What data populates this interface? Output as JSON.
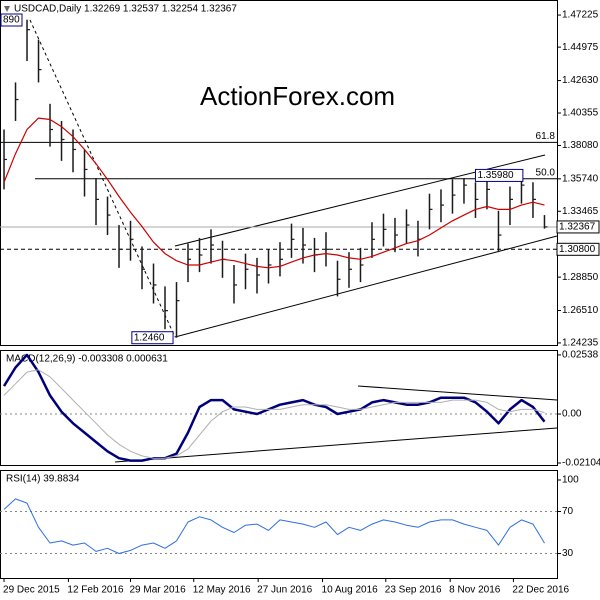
{
  "chart_data": [
    {
      "type": "ohlc",
      "title": "USDCAD,Daily 1.32269 1.32537 1.32254 1.32367",
      "watermark": "ActionForex.com",
      "cut_label": "890",
      "x": [
        0,
        1,
        2,
        3,
        4,
        5,
        6,
        7,
        8,
        9,
        10,
        11,
        12,
        13,
        14,
        15,
        16,
        17,
        18,
        19,
        20,
        21,
        22,
        23,
        24,
        25,
        26,
        27,
        28,
        29,
        30,
        31,
        32,
        33,
        34,
        35,
        36,
        37,
        38,
        39,
        40,
        41,
        42,
        43,
        44,
        45,
        46,
        47
      ],
      "xlim": [
        -0.35,
        48.09
      ],
      "xticks": [
        {
          "value": 0,
          "label": "29 Dec 2015"
        },
        {
          "value": 5.6,
          "label": "12 Feb 2016"
        },
        {
          "value": 11,
          "label": "29 Mar 2016"
        },
        {
          "value": 16.5,
          "label": "12 May 2016"
        },
        {
          "value": 22.1,
          "label": "27 Jun 2016"
        },
        {
          "value": 27.7,
          "label": "10 Aug 2016"
        },
        {
          "value": 33.2,
          "label": "23 Sep 2016"
        },
        {
          "value": 38.8,
          "label": "8 Nov 2016"
        },
        {
          "value": 44.3,
          "label": "22 Dec 2016"
        }
      ],
      "high": [
        1.392,
        1.425,
        1.469,
        1.455,
        1.41,
        1.398,
        1.392,
        1.378,
        1.358,
        1.345,
        1.325,
        1.328,
        1.31,
        1.298,
        1.282,
        1.285,
        1.312,
        1.316,
        1.322,
        1.314,
        1.297,
        1.305,
        1.302,
        1.308,
        1.313,
        1.326,
        1.323,
        1.316,
        1.32,
        1.3,
        1.306,
        1.309,
        1.327,
        1.333,
        1.33,
        1.336,
        1.328,
        1.347,
        1.35,
        1.357,
        1.358,
        1.355,
        1.357,
        1.335,
        1.352,
        1.3598,
        1.355,
        1.332
      ],
      "low": [
        1.35,
        1.398,
        1.44,
        1.425,
        1.38,
        1.37,
        1.362,
        1.345,
        1.325,
        1.318,
        1.295,
        1.3,
        1.28,
        1.27,
        1.252,
        1.246,
        1.285,
        1.292,
        1.298,
        1.288,
        1.27,
        1.28,
        1.277,
        1.284,
        1.289,
        1.302,
        1.298,
        1.292,
        1.296,
        1.275,
        1.281,
        1.285,
        1.302,
        1.31,
        1.306,
        1.312,
        1.303,
        1.322,
        1.327,
        1.333,
        1.34,
        1.33,
        1.336,
        1.306,
        1.325,
        1.34,
        1.33,
        1.3225
      ],
      "close": [
        1.371,
        1.413,
        1.462,
        1.434,
        1.392,
        1.385,
        1.378,
        1.364,
        1.343,
        1.332,
        1.308,
        1.315,
        1.294,
        1.283,
        1.265,
        1.272,
        1.301,
        1.304,
        1.311,
        1.301,
        1.283,
        1.294,
        1.29,
        1.297,
        1.301,
        1.315,
        1.311,
        1.304,
        1.308,
        1.287,
        1.294,
        1.297,
        1.315,
        1.322,
        1.318,
        1.325,
        1.315,
        1.336,
        1.339,
        1.346,
        1.353,
        1.343,
        1.35,
        1.318,
        1.343,
        1.353,
        1.343,
        1.3237
      ],
      "color": "#1a1a1a",
      "series": [
        {
          "color": "#cc0000",
          "values": [
            1.355,
            1.375,
            1.392,
            1.4,
            1.399,
            1.394,
            1.387,
            1.378,
            1.368,
            1.357,
            1.345,
            1.334,
            1.324,
            1.313,
            1.305,
            1.3,
            1.297,
            1.297,
            1.299,
            1.301,
            1.3,
            1.298,
            1.296,
            1.295,
            1.296,
            1.299,
            1.302,
            1.304,
            1.305,
            1.304,
            1.302,
            1.301,
            1.303,
            1.306,
            1.309,
            1.312,
            1.314,
            1.318,
            1.323,
            1.328,
            1.332,
            1.336,
            1.338,
            1.336,
            1.336,
            1.339,
            1.341,
            1.339
          ]
        }
      ],
      "ylim": [
        1.2409,
        1.4828
      ],
      "yticks": [
        1.47225,
        1.44975,
        {
          "value": 1.4263,
          "label": "1.42630"
        },
        1.40355,
        {
          "value": 1.3808,
          "label": "1.38080"
        },
        {
          "value": 1.3574,
          "label": "1.35740"
        },
        1.33465,
        {
          "value": 1.2885,
          "label": "1.28850"
        },
        {
          "value": 1.2651,
          "label": "1.26510"
        },
        1.24235
      ],
      "fibo": [
        {
          "level": "61.8",
          "price": 1.383
        },
        {
          "level": "50.0",
          "price": 1.3575
        }
      ],
      "price_lines": [
        {
          "value": 1.32367,
          "label": "1.32367",
          "style": "solid"
        },
        {
          "value": 1.308,
          "label": "1.30800",
          "style": "dashed"
        }
      ],
      "callouts": [
        {
          "value": 1.3598,
          "label": "1.35980",
          "x": 41,
          "anchor": "start"
        },
        {
          "value": 1.246,
          "label": "1.2460",
          "x": 14.7,
          "anchor": "end"
        }
      ]
    },
    {
      "type": "line",
      "title": "MACD(12,26,9) -0.003308 0.000631",
      "series": [
        {
          "color": "#00007a",
          "width": 2.5,
          "values": [
            0.012,
            0.02,
            0.0254,
            0.018,
            0.008,
            0.001,
            -0.004,
            -0.008,
            -0.012,
            -0.016,
            -0.019,
            -0.02,
            -0.02,
            -0.019,
            -0.019,
            -0.017,
            -0.008,
            0.003,
            0.006,
            0.006,
            0.002,
            0.001,
            0.0,
            0.002,
            0.004,
            0.005,
            0.006,
            0.004,
            0.003,
            0.0,
            0.001,
            0.002,
            0.005,
            0.006,
            0.005,
            0.004,
            0.004,
            0.005,
            0.007,
            0.007,
            0.007,
            0.005,
            0.001,
            -0.004,
            0.002,
            0.006,
            0.003,
            -0.0033
          ]
        },
        {
          "color": "#b0b0b0",
          "width": 1,
          "values": [
            0.008,
            0.013,
            0.018,
            0.019,
            0.016,
            0.011,
            0.006,
            0.001,
            -0.004,
            -0.009,
            -0.013,
            -0.016,
            -0.018,
            -0.019,
            -0.019,
            -0.018,
            -0.015,
            -0.009,
            -0.003,
            0.001,
            0.003,
            0.003,
            0.002,
            0.002,
            0.002,
            0.003,
            0.004,
            0.004,
            0.004,
            0.003,
            0.002,
            0.002,
            0.003,
            0.004,
            0.005,
            0.005,
            0.005,
            0.005,
            0.005,
            0.006,
            0.006,
            0.006,
            0.005,
            0.002,
            0.001,
            0.002,
            0.002,
            0.0006
          ]
        }
      ],
      "ylim": [
        -0.0219,
        0.0275
      ],
      "yticks": [
        0.02538,
        {
          "value": 0,
          "label": "0.00"
        },
        -0.021042
      ],
      "levels": [
        0
      ]
    },
    {
      "type": "line",
      "title": "RSI(14) 39.8834",
      "series": [
        {
          "color": "#2f6fe0",
          "width": 1,
          "values": [
            72,
            82,
            78,
            55,
            40,
            42,
            38,
            40,
            32,
            35,
            30,
            33,
            38,
            40,
            35,
            42,
            60,
            65,
            62,
            55,
            50,
            57,
            58,
            52,
            62,
            60,
            58,
            55,
            60,
            48,
            55,
            52,
            58,
            62,
            60,
            57,
            55,
            60,
            62,
            62,
            58,
            55,
            52,
            38,
            55,
            62,
            58,
            39.9
          ]
        }
      ],
      "ylim": [
        6.7,
        109.5
      ],
      "yticks": [
        100,
        70,
        30
      ],
      "levels": [
        70,
        30
      ]
    }
  ]
}
